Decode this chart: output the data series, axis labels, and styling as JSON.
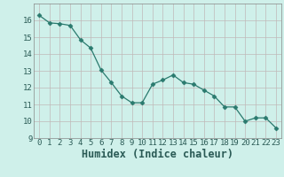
{
  "x": [
    0,
    1,
    2,
    3,
    4,
    5,
    6,
    7,
    8,
    9,
    10,
    11,
    12,
    13,
    14,
    15,
    16,
    17,
    18,
    19,
    20,
    21,
    22,
    23
  ],
  "y": [
    16.3,
    15.85,
    15.8,
    15.7,
    14.85,
    14.35,
    13.05,
    12.3,
    11.5,
    11.1,
    11.1,
    12.2,
    12.45,
    12.75,
    12.3,
    12.2,
    11.85,
    11.5,
    10.85,
    10.85,
    10.0,
    10.2,
    10.2,
    9.6
  ],
  "line_color": "#2a7a6e",
  "marker": "D",
  "marker_size": 2.5,
  "bg_color": "#cff0ea",
  "grid_color_major": "#c0b8b8",
  "grid_color_minor": "#d8ecea",
  "xlabel": "Humidex (Indice chaleur)",
  "ylim": [
    9,
    17
  ],
  "xlim": [
    -0.5,
    23.5
  ],
  "yticks": [
    9,
    10,
    11,
    12,
    13,
    14,
    15,
    16
  ],
  "xticks": [
    0,
    1,
    2,
    3,
    4,
    5,
    6,
    7,
    8,
    9,
    10,
    11,
    12,
    13,
    14,
    15,
    16,
    17,
    18,
    19,
    20,
    21,
    22,
    23
  ],
  "tick_fontsize": 6.5,
  "xlabel_fontsize": 8.5
}
